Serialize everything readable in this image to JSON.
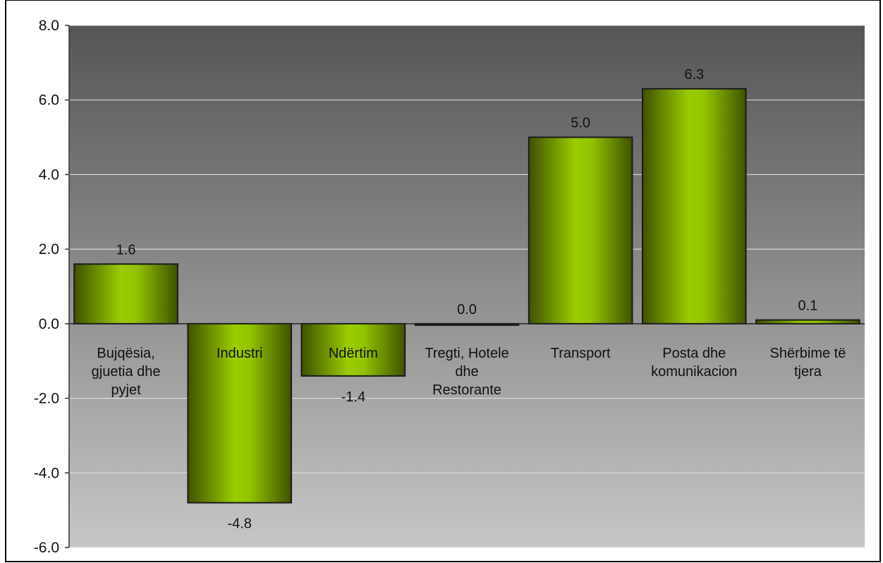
{
  "chart_data": {
    "type": "bar",
    "categories": [
      [
        "Bujqësia,",
        "gjuetia dhe",
        "pyjet"
      ],
      [
        "Industri"
      ],
      [
        "Ndërtim"
      ],
      [
        "Tregti, Hotele",
        "dhe",
        "Restorante"
      ],
      [
        "Transport"
      ],
      [
        "Posta dhe",
        "komunikacion"
      ],
      [
        "Shërbime të",
        "tjera"
      ]
    ],
    "values": [
      1.6,
      -4.8,
      -1.4,
      0.0,
      5.0,
      6.3,
      0.1
    ],
    "data_labels": [
      "1.6",
      "-4.8",
      "-1.4",
      "0.0",
      "5.0",
      "6.3",
      "0.1"
    ],
    "ylim": [
      -6.0,
      8.0
    ],
    "yticks": [
      "8.0",
      "6.0",
      "4.0",
      "2.0",
      "0.0",
      "-2.0",
      "-4.0",
      "-6.0"
    ],
    "ytick_values": [
      8,
      6,
      4,
      2,
      0,
      -2,
      -4,
      -6
    ],
    "grid": true,
    "legend": false,
    "colors": {
      "bar_light": "#9acd00",
      "bar_dark": "#3f5200",
      "bar_border": "#1a1a1a",
      "plot_top": "#555555",
      "plot_bottom": "#c4c4c4",
      "gridline": "#e8e8e8"
    }
  }
}
